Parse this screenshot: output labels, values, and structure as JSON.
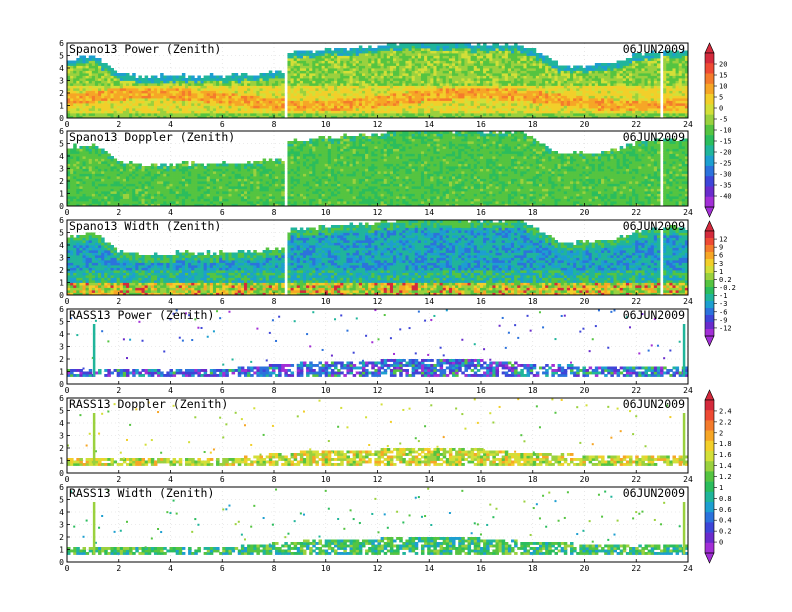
{
  "figure": {
    "date_label": "06JUN2009"
  },
  "chart_data": [
    {
      "type": "heatmap",
      "title": "Spano13 Power (Zenith)",
      "date": "06JUN2009",
      "xlim": [
        0,
        24
      ],
      "ylim": [
        0,
        6
      ],
      "xticks": [
        "0",
        "2",
        "4",
        "6",
        "8",
        "10",
        "12",
        "14",
        "16",
        "18",
        "20",
        "22",
        "24"
      ],
      "yticks": [
        "0",
        "1",
        "2",
        "3",
        "4",
        "5",
        "6"
      ],
      "pattern": "power",
      "colorbar": 0,
      "top_profile": [
        [
          0,
          4.6
        ],
        [
          1,
          4.9
        ],
        [
          2,
          3.4
        ],
        [
          3,
          3.2
        ],
        [
          4,
          3.3
        ],
        [
          6,
          3.3
        ],
        [
          8.3,
          3.6
        ],
        [
          8.5,
          5.1
        ],
        [
          10,
          5.4
        ],
        [
          12,
          5.7
        ],
        [
          13,
          6.0
        ],
        [
          14,
          6.0
        ],
        [
          16,
          5.8
        ],
        [
          17.5,
          5.8
        ],
        [
          18.5,
          4.8
        ],
        [
          19,
          4.1
        ],
        [
          20,
          4.1
        ],
        [
          21,
          4.3
        ],
        [
          22,
          5.0
        ],
        [
          23,
          5.3
        ],
        [
          24,
          5.2
        ]
      ],
      "gaps": [
        8.4,
        22.9
      ]
    },
    {
      "type": "heatmap",
      "title": "Spano13 Doppler (Zenith)",
      "date": "06JUN2009",
      "xlim": [
        0,
        24
      ],
      "ylim": [
        0,
        6
      ],
      "xticks": [
        "0",
        "2",
        "4",
        "6",
        "8",
        "10",
        "12",
        "14",
        "16",
        "18",
        "20",
        "22",
        "24"
      ],
      "yticks": [
        "0",
        "1",
        "2",
        "3",
        "4",
        "5",
        "6"
      ],
      "pattern": "doppler",
      "colorbar": 0,
      "top_profile": [
        [
          0,
          4.6
        ],
        [
          1,
          4.9
        ],
        [
          2,
          3.4
        ],
        [
          3,
          3.2
        ],
        [
          4,
          3.3
        ],
        [
          6,
          3.3
        ],
        [
          8.3,
          3.6
        ],
        [
          8.5,
          5.1
        ],
        [
          10,
          5.4
        ],
        [
          12,
          5.7
        ],
        [
          13,
          6.0
        ],
        [
          14,
          6.0
        ],
        [
          16,
          5.8
        ],
        [
          17.5,
          5.8
        ],
        [
          18.5,
          4.8
        ],
        [
          19,
          4.1
        ],
        [
          20,
          4.1
        ],
        [
          21,
          4.3
        ],
        [
          22,
          5.0
        ],
        [
          23,
          5.3
        ],
        [
          24,
          5.2
        ]
      ],
      "gaps": [
        8.4,
        22.9
      ]
    },
    {
      "type": "heatmap",
      "title": "Spano13 Width (Zenith)",
      "date": "06JUN2009",
      "xlim": [
        0,
        24
      ],
      "ylim": [
        0,
        6
      ],
      "xticks": [
        "0",
        "2",
        "4",
        "6",
        "8",
        "10",
        "12",
        "14",
        "16",
        "18",
        "20",
        "22",
        "24"
      ],
      "yticks": [
        "0",
        "1",
        "2",
        "3",
        "4",
        "5",
        "6"
      ],
      "pattern": "width",
      "colorbar": 1,
      "top_profile": [
        [
          0,
          4.6
        ],
        [
          1,
          4.9
        ],
        [
          2,
          3.4
        ],
        [
          3,
          3.2
        ],
        [
          4,
          3.3
        ],
        [
          6,
          3.3
        ],
        [
          8.3,
          3.6
        ],
        [
          8.5,
          5.1
        ],
        [
          10,
          5.4
        ],
        [
          12,
          5.7
        ],
        [
          13,
          6.0
        ],
        [
          14,
          6.0
        ],
        [
          16,
          5.8
        ],
        [
          17.5,
          5.8
        ],
        [
          18.5,
          4.8
        ],
        [
          19,
          4.1
        ],
        [
          20,
          4.1
        ],
        [
          21,
          4.3
        ],
        [
          22,
          5.0
        ],
        [
          23,
          5.3
        ],
        [
          24,
          5.2
        ]
      ],
      "gaps": [
        8.4,
        22.9
      ]
    },
    {
      "type": "heatmap",
      "title": "RASS13 Power (Zenith)",
      "date": "06JUN2009",
      "xlim": [
        0,
        24
      ],
      "ylim": [
        0,
        6
      ],
      "xticks": [
        "0",
        "2",
        "4",
        "6",
        "8",
        "10",
        "12",
        "14",
        "16",
        "18",
        "20",
        "22",
        "24"
      ],
      "yticks": [
        "0",
        "1",
        "2",
        "3",
        "4",
        "5",
        "6"
      ],
      "pattern": "rass_power",
      "colorbar": 1,
      "band_profile": [
        [
          0,
          1.2
        ],
        [
          6,
          1.1
        ],
        [
          9,
          1.6
        ],
        [
          12,
          1.8
        ],
        [
          16,
          1.8
        ],
        [
          18,
          1.5
        ],
        [
          21,
          1.3
        ],
        [
          24,
          1.2
        ]
      ],
      "spikes": [
        1.0,
        23.8
      ]
    },
    {
      "type": "heatmap",
      "title": "RASS13 Doppler (Zenith)",
      "date": "06JUN2009",
      "xlim": [
        0,
        24
      ],
      "ylim": [
        0,
        6
      ],
      "xticks": [
        "0",
        "2",
        "4",
        "6",
        "8",
        "10",
        "12",
        "14",
        "16",
        "18",
        "20",
        "22",
        "24"
      ],
      "yticks": [
        "0",
        "1",
        "2",
        "3",
        "4",
        "5",
        "6"
      ],
      "pattern": "rass_doppler",
      "colorbar": 2,
      "band_profile": [
        [
          0,
          1.2
        ],
        [
          6,
          1.1
        ],
        [
          9,
          1.6
        ],
        [
          12,
          1.8
        ],
        [
          16,
          1.8
        ],
        [
          18,
          1.5
        ],
        [
          21,
          1.3
        ],
        [
          24,
          1.2
        ]
      ],
      "spikes": [
        1.0,
        23.8
      ]
    },
    {
      "type": "heatmap",
      "title": "RASS13 Width (Zenith)",
      "date": "06JUN2009",
      "xlim": [
        0,
        24
      ],
      "ylim": [
        0,
        6
      ],
      "xticks": [
        "0",
        "2",
        "4",
        "6",
        "8",
        "10",
        "12",
        "14",
        "16",
        "18",
        "20",
        "22",
        "24"
      ],
      "yticks": [
        "0",
        "1",
        "2",
        "3",
        "4",
        "5",
        "6"
      ],
      "pattern": "rass_width",
      "colorbar": 2,
      "band_profile": [
        [
          0,
          1.2
        ],
        [
          6,
          1.1
        ],
        [
          9,
          1.6
        ],
        [
          12,
          1.8
        ],
        [
          16,
          1.8
        ],
        [
          18,
          1.5
        ],
        [
          21,
          1.3
        ],
        [
          24,
          1.2
        ]
      ],
      "spikes": [
        1.0,
        23.8
      ]
    }
  ],
  "colorbars": [
    {
      "labels": [
        "20",
        "15",
        "10",
        "5",
        "0",
        "-5",
        "-10",
        "-15",
        "-20",
        "-25",
        "-30",
        "-35",
        "-40"
      ],
      "colors": [
        "#d42a3c",
        "#ee4a34",
        "#f47b2c",
        "#f6a626",
        "#f2cf2a",
        "#d3df38",
        "#9ad13e",
        "#55c441",
        "#2bbd5d",
        "#20b59b",
        "#1d9fd0",
        "#2c72dc",
        "#3e45d8",
        "#6a2ccc",
        "#a22fd6"
      ]
    },
    {
      "labels": [
        "12",
        "9",
        "6",
        "3",
        "1",
        "0.2",
        "-0.2",
        "-1",
        "-3",
        "-6",
        "-9",
        "-12"
      ],
      "colors": [
        "#d42a3c",
        "#ee4a34",
        "#f47b2c",
        "#f6a626",
        "#f2cf2a",
        "#d3df38",
        "#9ad13e",
        "#55c441",
        "#2bbd5d",
        "#20b59b",
        "#1d9fd0",
        "#2c72dc",
        "#3e45d8",
        "#6a2ccc",
        "#a22fd6"
      ]
    },
    {
      "labels": [
        "2.4",
        "2.2",
        "2",
        "1.8",
        "1.6",
        "1.4",
        "1.2",
        "1",
        "0.8",
        "0.6",
        "0.4",
        "0.2",
        "0"
      ],
      "colors": [
        "#d42a3c",
        "#ee4a34",
        "#f47b2c",
        "#f6a626",
        "#f2cf2a",
        "#d3df38",
        "#9ad13e",
        "#55c441",
        "#2bbd5d",
        "#20b59b",
        "#1d9fd0",
        "#2c72dc",
        "#3e45d8",
        "#6a2ccc",
        "#a22fd6"
      ]
    }
  ]
}
